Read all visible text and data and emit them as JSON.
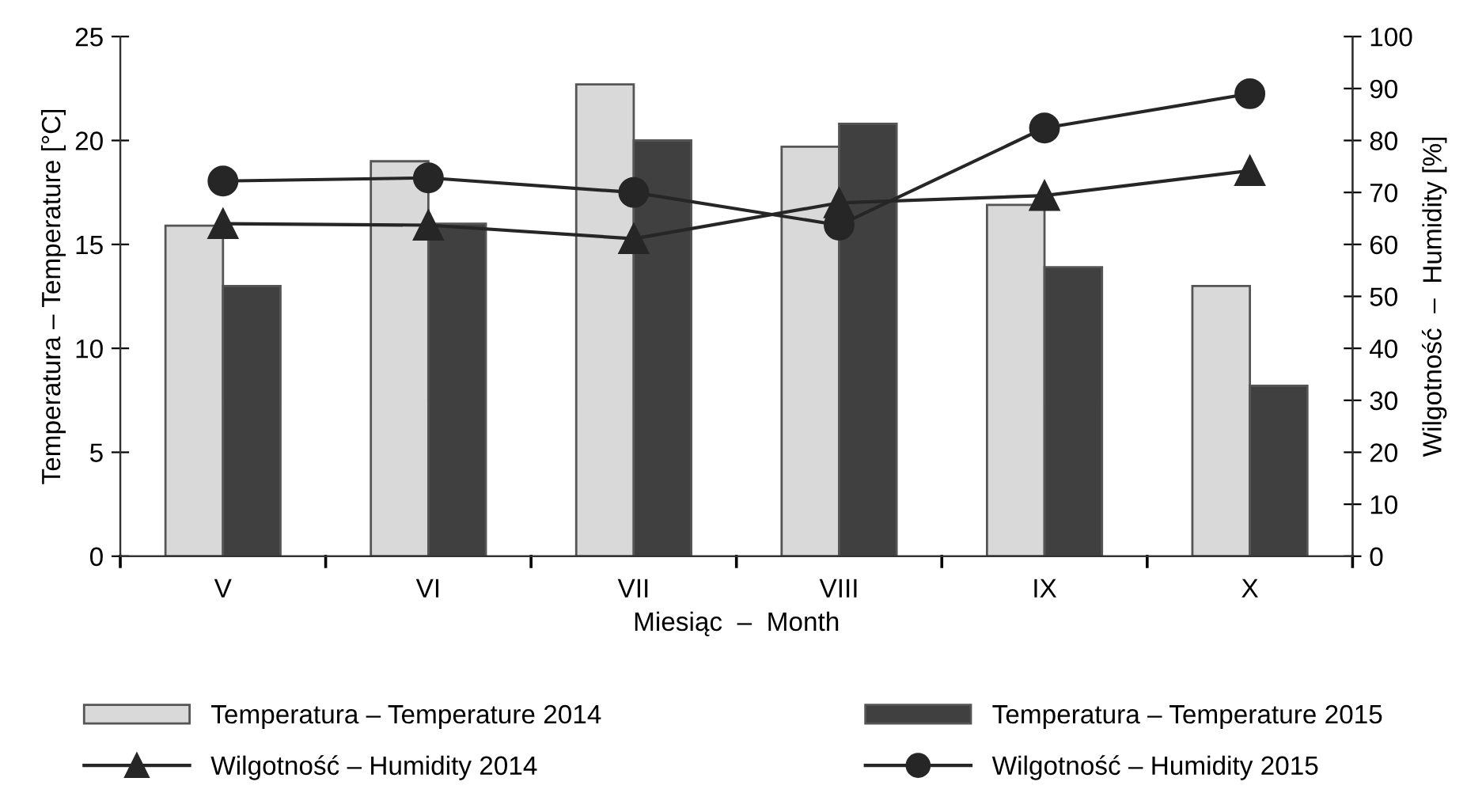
{
  "chart_data": {
    "type": "bar",
    "categories": [
      "V",
      "VI",
      "VII",
      "VIII",
      "IX",
      "X"
    ],
    "xlabel": "Miesiąc  –  Month",
    "ylabel": "Temperatura – Temperature [°C]",
    "y2label": "Wilgotność  –  Humidity [%]",
    "ylim": [
      0,
      25
    ],
    "yticks": [
      0,
      5,
      10,
      15,
      20,
      25
    ],
    "y2lim": [
      0,
      100
    ],
    "y2ticks": [
      0,
      10,
      20,
      30,
      40,
      50,
      60,
      70,
      80,
      90,
      100
    ],
    "legend": "bottom",
    "series": [
      {
        "name": "Temperatura – Temperature 2014",
        "color": "#d9d9d9",
        "values": [
          15.9,
          19.0,
          22.7,
          19.7,
          16.9,
          13.0
        ]
      },
      {
        "name": "Temperatura – Temperature 2015",
        "color": "#404040",
        "values": [
          13.0,
          16.0,
          20.0,
          20.8,
          13.9,
          8.2
        ]
      },
      {
        "name": "Wilgotność – Humidity 2014",
        "type": "line",
        "axis": "y2",
        "marker": "triangle",
        "color": "#262626",
        "values": [
          64.0,
          63.7,
          61.1,
          68.0,
          69.4,
          74.2
        ]
      },
      {
        "name": "Wilgotność – Humidity 2015",
        "type": "line",
        "axis": "y2",
        "marker": "circle",
        "color": "#262626",
        "values": [
          72.2,
          72.8,
          70.0,
          63.7,
          82.4,
          89.0
        ]
      }
    ]
  }
}
